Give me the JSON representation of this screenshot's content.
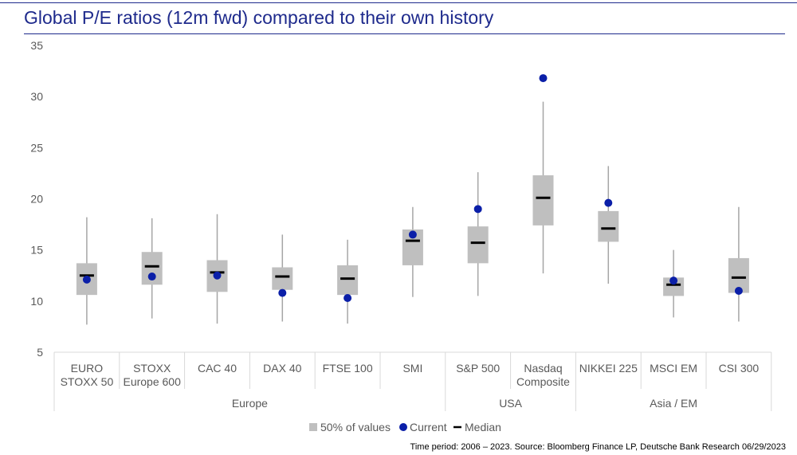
{
  "chart_data": {
    "type": "box",
    "title": "Global P/E ratios (12m fwd) compared to their own history",
    "ylim": [
      5,
      35
    ],
    "yticks": [
      5,
      10,
      15,
      20,
      25,
      30,
      35
    ],
    "categories": [
      {
        "label_lines": [
          "EURO",
          "STOXX 50"
        ],
        "min": 7.7,
        "q1": 10.6,
        "median": 12.5,
        "q3": 13.7,
        "max": 18.2,
        "current": 12.1
      },
      {
        "label_lines": [
          "STOXX",
          "Europe 600"
        ],
        "min": 8.3,
        "q1": 11.6,
        "median": 13.4,
        "q3": 14.8,
        "max": 18.1,
        "current": 12.4
      },
      {
        "label_lines": [
          "CAC 40"
        ],
        "min": 7.8,
        "q1": 10.9,
        "median": 12.8,
        "q3": 14.0,
        "max": 18.5,
        "current": 12.5
      },
      {
        "label_lines": [
          "DAX 40"
        ],
        "min": 8.0,
        "q1": 11.1,
        "median": 12.4,
        "q3": 13.3,
        "max": 16.5,
        "current": 10.8
      },
      {
        "label_lines": [
          "FTSE 100"
        ],
        "min": 7.8,
        "q1": 10.6,
        "median": 12.2,
        "q3": 13.5,
        "max": 16.0,
        "current": 10.3
      },
      {
        "label_lines": [
          "SMI"
        ],
        "min": 10.4,
        "q1": 13.5,
        "median": 15.9,
        "q3": 17.0,
        "max": 19.2,
        "current": 16.5
      },
      {
        "label_lines": [
          "S&P 500"
        ],
        "min": 10.5,
        "q1": 13.7,
        "median": 15.7,
        "q3": 17.3,
        "max": 22.6,
        "current": 19.0
      },
      {
        "label_lines": [
          "Nasdaq",
          "Composite"
        ],
        "min": 12.7,
        "q1": 17.4,
        "median": 20.1,
        "q3": 22.3,
        "max": 29.5,
        "current": 31.8
      },
      {
        "label_lines": [
          "NIKKEI 225"
        ],
        "min": 11.7,
        "q1": 15.8,
        "median": 17.1,
        "q3": 18.8,
        "max": 23.2,
        "current": 19.6
      },
      {
        "label_lines": [
          "MSCI EM"
        ],
        "min": 8.4,
        "q1": 10.5,
        "median": 11.6,
        "q3": 12.3,
        "max": 15.0,
        "current": 12.0
      },
      {
        "label_lines": [
          "CSI 300"
        ],
        "min": 8.0,
        "q1": 10.8,
        "median": 12.3,
        "q3": 14.2,
        "max": 19.2,
        "current": 11.0
      }
    ],
    "groups": [
      {
        "label": "Europe",
        "count": 6
      },
      {
        "label": "USA",
        "count": 2
      },
      {
        "label": "Asia / EM",
        "count": 3
      }
    ],
    "legend": [
      "50% of values",
      "Current",
      "Median"
    ],
    "footnote": "Time period: 2006 – 2023. Source: Bloomberg Finance LP, Deutsche Bank Research 06/29/2023",
    "colors": {
      "box": "#bfbfbf",
      "whisker": "#a6a6a6",
      "current": "#0b1fa8",
      "median": "#000000",
      "title": "#1e2a8c",
      "axis_text": "#595959",
      "grid_line": "#d9d9d9"
    }
  }
}
